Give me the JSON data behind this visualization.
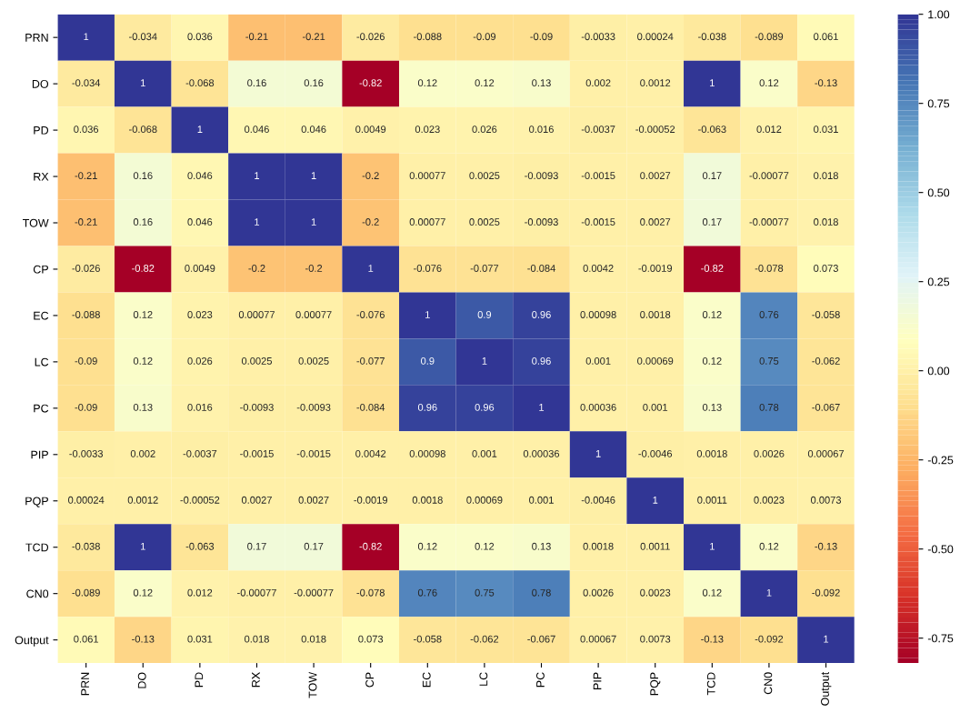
{
  "chart_data": {
    "type": "heatmap",
    "categories": [
      "PRN",
      "DO",
      "PD",
      "RX",
      "TOW",
      "CP",
      "EC",
      "LC",
      "PC",
      "PIP",
      "PQP",
      "TCD",
      "CN0",
      "Output"
    ],
    "y_categories": [
      "PRN",
      "DO",
      "PD",
      "RX",
      "TOW",
      "CP",
      "EC",
      "LC",
      "PC",
      "PIP",
      "PQP",
      "TCD",
      "CN0",
      "Output"
    ],
    "cells": [
      [
        1,
        -0.034,
        0.036,
        -0.21,
        -0.21,
        -0.026,
        -0.088,
        -0.09,
        -0.09,
        -0.0033,
        0.00024,
        -0.038,
        -0.089,
        0.061
      ],
      [
        -0.034,
        1,
        -0.068,
        0.16,
        0.16,
        -0.82,
        0.12,
        0.12,
        0.13,
        0.002,
        0.0012,
        1,
        0.12,
        -0.13
      ],
      [
        0.036,
        -0.068,
        1,
        0.046,
        0.046,
        0.0049,
        0.023,
        0.026,
        0.016,
        -0.0037,
        -0.00052,
        -0.063,
        0.012,
        0.031
      ],
      [
        -0.21,
        0.16,
        0.046,
        1,
        1,
        -0.2,
        0.00077,
        0.0025,
        -0.0093,
        -0.0015,
        0.0027,
        0.17,
        -0.00077,
        0.018
      ],
      [
        -0.21,
        0.16,
        0.046,
        1,
        1,
        -0.2,
        0.00077,
        0.0025,
        -0.0093,
        -0.0015,
        0.0027,
        0.17,
        -0.00077,
        0.018
      ],
      [
        -0.026,
        -0.82,
        0.0049,
        -0.2,
        -0.2,
        1,
        -0.076,
        -0.077,
        -0.084,
        0.0042,
        -0.0019,
        -0.82,
        -0.078,
        0.073
      ],
      [
        -0.088,
        0.12,
        0.023,
        0.00077,
        0.00077,
        -0.076,
        1,
        0.9,
        0.96,
        0.00098,
        0.0018,
        0.12,
        0.76,
        -0.058
      ],
      [
        -0.09,
        0.12,
        0.026,
        0.0025,
        0.0025,
        -0.077,
        0.9,
        1,
        0.96,
        0.001,
        0.00069,
        0.12,
        0.75,
        -0.062
      ],
      [
        -0.09,
        0.13,
        0.016,
        -0.0093,
        -0.0093,
        -0.084,
        0.96,
        0.96,
        1,
        0.00036,
        0.001,
        0.13,
        0.78,
        -0.067
      ],
      [
        -0.0033,
        0.002,
        -0.0037,
        -0.0015,
        -0.0015,
        0.0042,
        0.00098,
        0.001,
        0.00036,
        1,
        -0.0046,
        0.0018,
        0.0026,
        0.00067
      ],
      [
        0.00024,
        0.0012,
        -0.00052,
        0.0027,
        0.0027,
        -0.0019,
        0.0018,
        0.00069,
        0.001,
        -0.0046,
        1,
        0.0011,
        0.0023,
        0.0073
      ],
      [
        -0.038,
        1,
        -0.063,
        0.17,
        0.17,
        -0.82,
        0.12,
        0.12,
        0.13,
        0.0018,
        0.0011,
        1,
        0.12,
        -0.13
      ],
      [
        -0.089,
        0.12,
        0.012,
        -0.00077,
        -0.00077,
        -0.078,
        0.76,
        0.75,
        0.78,
        0.0026,
        0.0023,
        0.12,
        1,
        -0.092
      ],
      [
        0.061,
        -0.13,
        0.031,
        0.018,
        0.018,
        0.073,
        -0.058,
        -0.062,
        -0.067,
        0.00067,
        0.0073,
        -0.13,
        -0.092,
        1
      ]
    ],
    "data_labels": true,
    "clim": [
      -0.82,
      1
    ],
    "cticks": [
      {
        "value": -0.75,
        "label": "-0.75"
      },
      {
        "value": -0.5,
        "label": "-0.50"
      },
      {
        "value": -0.25,
        "label": "-0.25"
      },
      {
        "value": 0,
        "label": "0.00"
      },
      {
        "value": 0.25,
        "label": "0.25"
      },
      {
        "value": 0.5,
        "label": "0.50"
      },
      {
        "value": 0.75,
        "label": "0.75"
      },
      {
        "value": 1,
        "label": "1.00"
      }
    ]
  }
}
